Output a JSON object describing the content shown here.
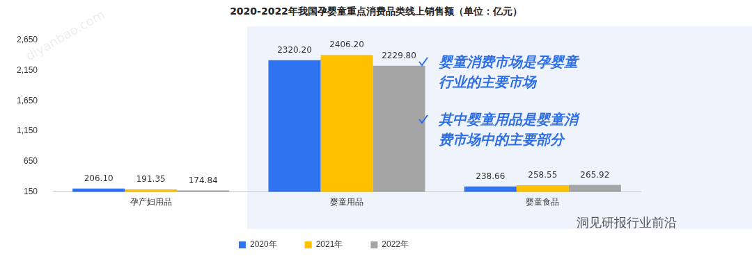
{
  "chart_data": {
    "type": "bar",
    "title": "2020-2022年我国孕婴童重点消费品类线上销售额（单位：亿元）",
    "categories": [
      "孕产妇用品",
      "婴童用品",
      "婴童食品"
    ],
    "series": [
      {
        "name": "2020年",
        "color": "#2f73f0",
        "values": [
          206.1,
          2320.2,
          238.66
        ],
        "value_labels": [
          "206.10",
          "2320.20",
          "238.66"
        ]
      },
      {
        "name": "2021年",
        "color": "#ffc000",
        "values": [
          191.35,
          2406.2,
          258.55
        ],
        "value_labels": [
          "191.35",
          "2406.20",
          "258.55"
        ]
      },
      {
        "name": "2022年",
        "color": "#a5a5a5",
        "values": [
          174.84,
          2229.8,
          265.92
        ],
        "value_labels": [
          "174.84",
          "2229.80",
          "265.92"
        ]
      }
    ],
    "ylim": [
      150,
      2650
    ],
    "yticks": [
      150,
      650,
      {
        "value": 1150,
        "label": "1,150"
      },
      {
        "value": 1650,
        "label": "1,650"
      },
      {
        "value": 2150,
        "label": "2,150"
      },
      {
        "value": 2650,
        "label": "2,650"
      }
    ],
    "grid": false,
    "legend": "bottom",
    "data_labels": true,
    "annotations": [
      "婴童消费市场是孕婴童行业的主要市场",
      "其中婴童用品是婴童消费市场中的主要部分",
      "洞见研报行业前沿",
      "diyanbao.com"
    ]
  }
}
